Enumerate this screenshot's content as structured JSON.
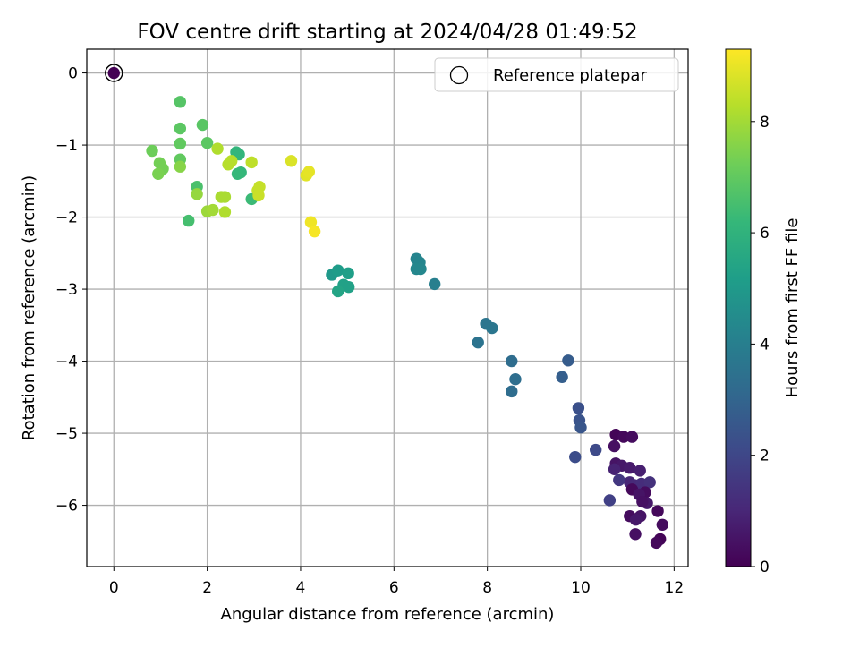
{
  "chart_data": {
    "type": "scatter",
    "title": "FOV centre drift starting at 2024/04/28 01:49:52",
    "xlabel": "Angular distance from reference (arcmin)",
    "ylabel": "Rotation from reference (arcmin)",
    "xlim": [
      -0.58,
      12.3
    ],
    "ylim": [
      -6.85,
      0.33
    ],
    "xticks": [
      0,
      2,
      4,
      6,
      8,
      10,
      12
    ],
    "yticks": [
      0,
      -1,
      -2,
      -3,
      -4,
      -5,
      -6
    ],
    "grid": true,
    "legend": {
      "placement": "top-right",
      "entries": [
        {
          "label": "Reference platepar",
          "marker": "open-circle"
        }
      ]
    },
    "colorbar": {
      "label": "Hours from first FF file",
      "range": [
        0,
        9.3
      ],
      "ticks": [
        0,
        2,
        4,
        6,
        8
      ],
      "colormap": "viridis"
    },
    "reference": {
      "x": 0,
      "y": 0,
      "hours": 0
    },
    "series": [
      {
        "points": [
          {
            "x": 10.75,
            "y": -5.02,
            "h": 0.1
          },
          {
            "x": 10.92,
            "y": -5.05,
            "h": 0.2
          },
          {
            "x": 11.1,
            "y": -5.05,
            "h": 0.3
          },
          {
            "x": 10.72,
            "y": -5.18,
            "h": 0.4
          },
          {
            "x": 10.75,
            "y": -5.42,
            "h": 0.5
          },
          {
            "x": 10.88,
            "y": -5.45,
            "h": 0.6
          },
          {
            "x": 11.05,
            "y": -5.48,
            "h": 0.7
          },
          {
            "x": 11.27,
            "y": -5.52,
            "h": 0.8
          },
          {
            "x": 10.72,
            "y": -5.5,
            "h": 0.9
          },
          {
            "x": 11.05,
            "y": -5.68,
            "h": 1.0
          },
          {
            "x": 11.15,
            "y": -5.72,
            "h": 1.1
          },
          {
            "x": 11.3,
            "y": -5.7,
            "h": 1.2
          },
          {
            "x": 11.48,
            "y": -5.68,
            "h": 1.3
          },
          {
            "x": 11.1,
            "y": -5.78,
            "h": 0.2
          },
          {
            "x": 11.38,
            "y": -5.82,
            "h": 0.3
          },
          {
            "x": 11.25,
            "y": -5.85,
            "h": 0.5
          },
          {
            "x": 11.42,
            "y": -5.97,
            "h": 0.6
          },
          {
            "x": 11.32,
            "y": -5.95,
            "h": 0.4
          },
          {
            "x": 11.65,
            "y": -6.08,
            "h": 0.2
          },
          {
            "x": 11.05,
            "y": -6.15,
            "h": 0.3
          },
          {
            "x": 11.28,
            "y": -6.15,
            "h": 0.5
          },
          {
            "x": 11.18,
            "y": -6.2,
            "h": 0.6
          },
          {
            "x": 11.75,
            "y": -6.27,
            "h": 0.3
          },
          {
            "x": 11.17,
            "y": -6.4,
            "h": 0.4
          },
          {
            "x": 11.7,
            "y": -6.47,
            "h": 0.1
          },
          {
            "x": 11.62,
            "y": -6.52,
            "h": 0.2
          },
          {
            "x": 10.82,
            "y": -5.65,
            "h": 1.5
          },
          {
            "x": 10.62,
            "y": -5.93,
            "h": 1.8
          },
          {
            "x": 10.32,
            "y": -5.23,
            "h": 2.1
          },
          {
            "x": 9.88,
            "y": -5.33,
            "h": 2.2
          },
          {
            "x": 9.95,
            "y": -4.65,
            "h": 2.3
          },
          {
            "x": 9.97,
            "y": -4.82,
            "h": 2.4
          },
          {
            "x": 10.0,
            "y": -4.92,
            "h": 2.5
          },
          {
            "x": 9.73,
            "y": -3.99,
            "h": 2.7
          },
          {
            "x": 9.6,
            "y": -4.22,
            "h": 2.8
          },
          {
            "x": 8.52,
            "y": -4.0,
            "h": 3.3
          },
          {
            "x": 8.6,
            "y": -4.25,
            "h": 3.35
          },
          {
            "x": 8.52,
            "y": -4.42,
            "h": 3.3
          },
          {
            "x": 7.97,
            "y": -3.48,
            "h": 3.6
          },
          {
            "x": 8.1,
            "y": -3.54,
            "h": 3.65
          },
          {
            "x": 7.8,
            "y": -3.74,
            "h": 3.55
          },
          {
            "x": 6.87,
            "y": -2.93,
            "h": 4.0
          },
          {
            "x": 6.48,
            "y": -2.58,
            "h": 4.2
          },
          {
            "x": 6.55,
            "y": -2.63,
            "h": 4.25
          },
          {
            "x": 6.48,
            "y": -2.72,
            "h": 4.3
          },
          {
            "x": 6.57,
            "y": -2.72,
            "h": 4.3
          },
          {
            "x": 4.67,
            "y": -2.8,
            "h": 5.0
          },
          {
            "x": 4.8,
            "y": -2.74,
            "h": 5.1
          },
          {
            "x": 5.02,
            "y": -2.78,
            "h": 5.2
          },
          {
            "x": 4.92,
            "y": -2.94,
            "h": 5.3
          },
          {
            "x": 5.03,
            "y": -2.97,
            "h": 5.3
          },
          {
            "x": 4.8,
            "y": -3.03,
            "h": 5.4
          },
          {
            "x": 2.62,
            "y": -1.1,
            "h": 6.1
          },
          {
            "x": 2.68,
            "y": -1.13,
            "h": 6.1
          },
          {
            "x": 2.72,
            "y": -1.38,
            "h": 6.15
          },
          {
            "x": 2.65,
            "y": -1.4,
            "h": 6.2
          },
          {
            "x": 2.95,
            "y": -1.75,
            "h": 6.3
          },
          {
            "x": 1.6,
            "y": -2.05,
            "h": 6.5
          },
          {
            "x": 1.78,
            "y": -1.58,
            "h": 6.6
          },
          {
            "x": 1.42,
            "y": -0.4,
            "h": 6.8
          },
          {
            "x": 1.9,
            "y": -0.72,
            "h": 6.85
          },
          {
            "x": 1.42,
            "y": -0.77,
            "h": 6.9
          },
          {
            "x": 2.0,
            "y": -0.97,
            "h": 6.9
          },
          {
            "x": 1.42,
            "y": -0.98,
            "h": 7.0
          },
          {
            "x": 1.42,
            "y": -1.2,
            "h": 7.0
          },
          {
            "x": 0.82,
            "y": -1.08,
            "h": 7.2
          },
          {
            "x": 0.98,
            "y": -1.25,
            "h": 7.3
          },
          {
            "x": 1.05,
            "y": -1.33,
            "h": 7.3
          },
          {
            "x": 0.95,
            "y": -1.4,
            "h": 7.4
          },
          {
            "x": 1.42,
            "y": -1.3,
            "h": 7.6
          },
          {
            "x": 1.78,
            "y": -1.68,
            "h": 7.8
          },
          {
            "x": 2.0,
            "y": -1.92,
            "h": 7.9
          },
          {
            "x": 2.12,
            "y": -1.9,
            "h": 8.0
          },
          {
            "x": 2.3,
            "y": -1.72,
            "h": 8.1
          },
          {
            "x": 2.38,
            "y": -1.72,
            "h": 8.1
          },
          {
            "x": 2.38,
            "y": -1.93,
            "h": 8.2
          },
          {
            "x": 2.22,
            "y": -1.05,
            "h": 8.2
          },
          {
            "x": 2.45,
            "y": -1.27,
            "h": 8.3
          },
          {
            "x": 2.52,
            "y": -1.22,
            "h": 8.3
          },
          {
            "x": 2.95,
            "y": -1.24,
            "h": 8.4
          },
          {
            "x": 3.08,
            "y": -1.63,
            "h": 8.5
          },
          {
            "x": 3.12,
            "y": -1.58,
            "h": 8.5
          },
          {
            "x": 3.1,
            "y": -1.7,
            "h": 8.55
          },
          {
            "x": 3.8,
            "y": -1.22,
            "h": 8.8
          },
          {
            "x": 4.12,
            "y": -1.42,
            "h": 8.9
          },
          {
            "x": 4.18,
            "y": -1.37,
            "h": 8.95
          },
          {
            "x": 4.22,
            "y": -2.07,
            "h": 9.1
          },
          {
            "x": 4.3,
            "y": -2.2,
            "h": 9.2
          }
        ]
      }
    ]
  }
}
